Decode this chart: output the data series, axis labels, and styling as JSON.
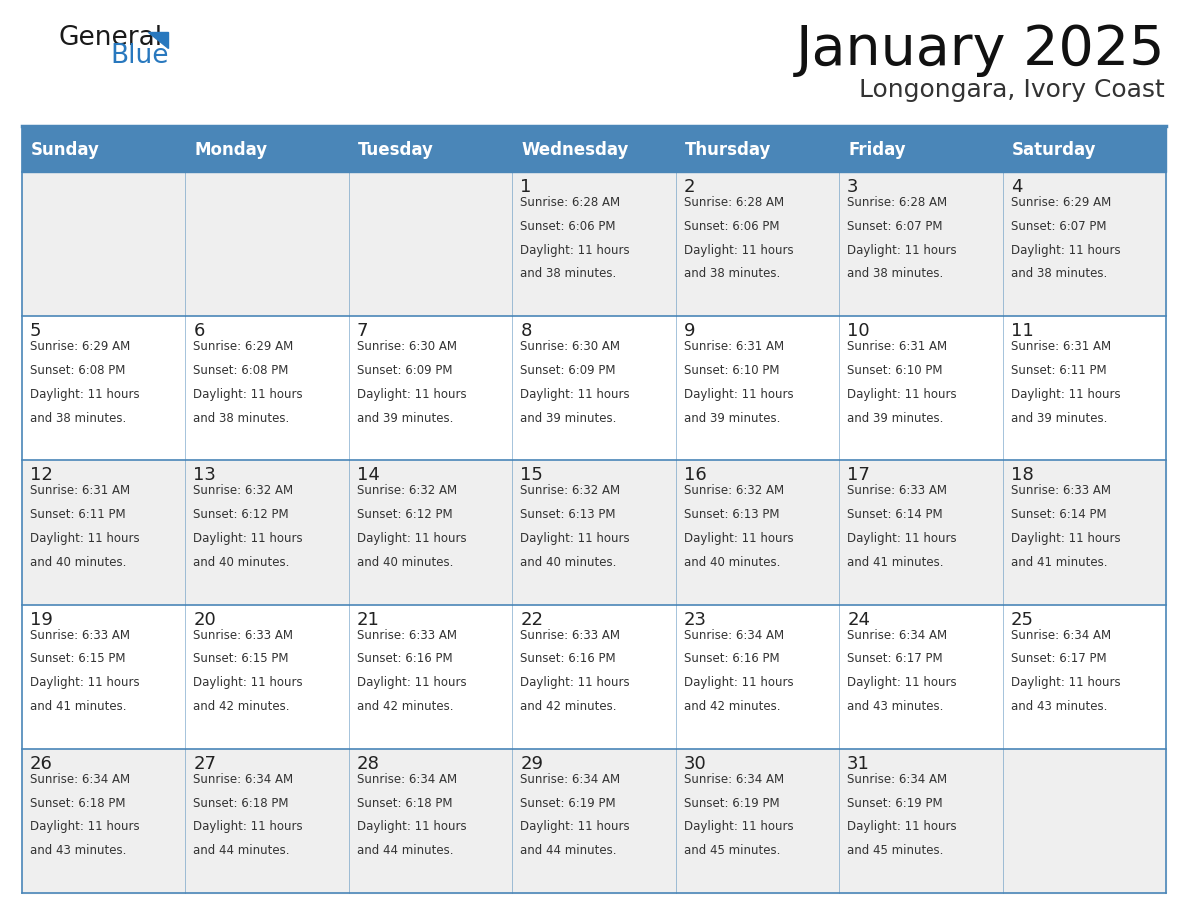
{
  "title": "January 2025",
  "subtitle": "Longongara, Ivory Coast",
  "days_of_week": [
    "Sunday",
    "Monday",
    "Tuesday",
    "Wednesday",
    "Thursday",
    "Friday",
    "Saturday"
  ],
  "header_bg": "#4A86B8",
  "header_text_color": "#FFFFFF",
  "cell_bg_even": "#EFEFEF",
  "cell_bg_odd": "#FFFFFF",
  "cell_border_color": "#4A86B8",
  "day_number_color": "#222222",
  "cell_text_color": "#333333",
  "title_color": "#111111",
  "subtitle_color": "#333333",
  "logo_general_color": "#1a1a1a",
  "logo_blue_color": "#2878BE",
  "weeks": [
    [
      {
        "day": null,
        "sunrise": null,
        "sunset": null,
        "daylight_hours": null,
        "daylight_minutes": null
      },
      {
        "day": null,
        "sunrise": null,
        "sunset": null,
        "daylight_hours": null,
        "daylight_minutes": null
      },
      {
        "day": null,
        "sunrise": null,
        "sunset": null,
        "daylight_hours": null,
        "daylight_minutes": null
      },
      {
        "day": 1,
        "sunrise": "6:28 AM",
        "sunset": "6:06 PM",
        "daylight_hours": "11 hours",
        "daylight_minutes": "38 minutes."
      },
      {
        "day": 2,
        "sunrise": "6:28 AM",
        "sunset": "6:06 PM",
        "daylight_hours": "11 hours",
        "daylight_minutes": "38 minutes."
      },
      {
        "day": 3,
        "sunrise": "6:28 AM",
        "sunset": "6:07 PM",
        "daylight_hours": "11 hours",
        "daylight_minutes": "38 minutes."
      },
      {
        "day": 4,
        "sunrise": "6:29 AM",
        "sunset": "6:07 PM",
        "daylight_hours": "11 hours",
        "daylight_minutes": "38 minutes."
      }
    ],
    [
      {
        "day": 5,
        "sunrise": "6:29 AM",
        "sunset": "6:08 PM",
        "daylight_hours": "11 hours",
        "daylight_minutes": "38 minutes."
      },
      {
        "day": 6,
        "sunrise": "6:29 AM",
        "sunset": "6:08 PM",
        "daylight_hours": "11 hours",
        "daylight_minutes": "38 minutes."
      },
      {
        "day": 7,
        "sunrise": "6:30 AM",
        "sunset": "6:09 PM",
        "daylight_hours": "11 hours",
        "daylight_minutes": "39 minutes."
      },
      {
        "day": 8,
        "sunrise": "6:30 AM",
        "sunset": "6:09 PM",
        "daylight_hours": "11 hours",
        "daylight_minutes": "39 minutes."
      },
      {
        "day": 9,
        "sunrise": "6:31 AM",
        "sunset": "6:10 PM",
        "daylight_hours": "11 hours",
        "daylight_minutes": "39 minutes."
      },
      {
        "day": 10,
        "sunrise": "6:31 AM",
        "sunset": "6:10 PM",
        "daylight_hours": "11 hours",
        "daylight_minutes": "39 minutes."
      },
      {
        "day": 11,
        "sunrise": "6:31 AM",
        "sunset": "6:11 PM",
        "daylight_hours": "11 hours",
        "daylight_minutes": "39 minutes."
      }
    ],
    [
      {
        "day": 12,
        "sunrise": "6:31 AM",
        "sunset": "6:11 PM",
        "daylight_hours": "11 hours",
        "daylight_minutes": "40 minutes."
      },
      {
        "day": 13,
        "sunrise": "6:32 AM",
        "sunset": "6:12 PM",
        "daylight_hours": "11 hours",
        "daylight_minutes": "40 minutes."
      },
      {
        "day": 14,
        "sunrise": "6:32 AM",
        "sunset": "6:12 PM",
        "daylight_hours": "11 hours",
        "daylight_minutes": "40 minutes."
      },
      {
        "day": 15,
        "sunrise": "6:32 AM",
        "sunset": "6:13 PM",
        "daylight_hours": "11 hours",
        "daylight_minutes": "40 minutes."
      },
      {
        "day": 16,
        "sunrise": "6:32 AM",
        "sunset": "6:13 PM",
        "daylight_hours": "11 hours",
        "daylight_minutes": "40 minutes."
      },
      {
        "day": 17,
        "sunrise": "6:33 AM",
        "sunset": "6:14 PM",
        "daylight_hours": "11 hours",
        "daylight_minutes": "41 minutes."
      },
      {
        "day": 18,
        "sunrise": "6:33 AM",
        "sunset": "6:14 PM",
        "daylight_hours": "11 hours",
        "daylight_minutes": "41 minutes."
      }
    ],
    [
      {
        "day": 19,
        "sunrise": "6:33 AM",
        "sunset": "6:15 PM",
        "daylight_hours": "11 hours",
        "daylight_minutes": "41 minutes."
      },
      {
        "day": 20,
        "sunrise": "6:33 AM",
        "sunset": "6:15 PM",
        "daylight_hours": "11 hours",
        "daylight_minutes": "42 minutes."
      },
      {
        "day": 21,
        "sunrise": "6:33 AM",
        "sunset": "6:16 PM",
        "daylight_hours": "11 hours",
        "daylight_minutes": "42 minutes."
      },
      {
        "day": 22,
        "sunrise": "6:33 AM",
        "sunset": "6:16 PM",
        "daylight_hours": "11 hours",
        "daylight_minutes": "42 minutes."
      },
      {
        "day": 23,
        "sunrise": "6:34 AM",
        "sunset": "6:16 PM",
        "daylight_hours": "11 hours",
        "daylight_minutes": "42 minutes."
      },
      {
        "day": 24,
        "sunrise": "6:34 AM",
        "sunset": "6:17 PM",
        "daylight_hours": "11 hours",
        "daylight_minutes": "43 minutes."
      },
      {
        "day": 25,
        "sunrise": "6:34 AM",
        "sunset": "6:17 PM",
        "daylight_hours": "11 hours",
        "daylight_minutes": "43 minutes."
      }
    ],
    [
      {
        "day": 26,
        "sunrise": "6:34 AM",
        "sunset": "6:18 PM",
        "daylight_hours": "11 hours",
        "daylight_minutes": "43 minutes."
      },
      {
        "day": 27,
        "sunrise": "6:34 AM",
        "sunset": "6:18 PM",
        "daylight_hours": "11 hours",
        "daylight_minutes": "44 minutes."
      },
      {
        "day": 28,
        "sunrise": "6:34 AM",
        "sunset": "6:18 PM",
        "daylight_hours": "11 hours",
        "daylight_minutes": "44 minutes."
      },
      {
        "day": 29,
        "sunrise": "6:34 AM",
        "sunset": "6:19 PM",
        "daylight_hours": "11 hours",
        "daylight_minutes": "44 minutes."
      },
      {
        "day": 30,
        "sunrise": "6:34 AM",
        "sunset": "6:19 PM",
        "daylight_hours": "11 hours",
        "daylight_minutes": "45 minutes."
      },
      {
        "day": 31,
        "sunrise": "6:34 AM",
        "sunset": "6:19 PM",
        "daylight_hours": "11 hours",
        "daylight_minutes": "45 minutes."
      },
      {
        "day": null,
        "sunrise": null,
        "sunset": null,
        "daylight_hours": null,
        "daylight_minutes": null
      }
    ]
  ]
}
